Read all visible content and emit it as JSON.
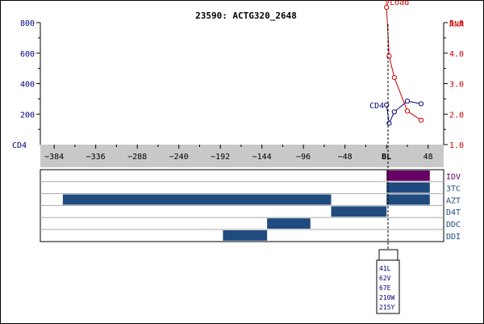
{
  "chart_data": [
    {
      "type": "line",
      "title": "23590: ACTG320_2648",
      "xlabel": "",
      "x_ticks": [
        -384,
        -336,
        -288,
        -240,
        -192,
        -144,
        -96,
        -48,
        0,
        48
      ],
      "x_tick_labels": [
        "-384",
        "-336",
        "-288",
        "-240",
        "-192",
        "-144",
        "-96",
        "-48",
        "BL",
        "48"
      ],
      "xlim": [
        -400,
        66
      ],
      "y_left": {
        "label": "CD4",
        "ticks": [
          200,
          400,
          600,
          800
        ],
        "tick_labels": [
          "200",
          "400",
          "600",
          "800"
        ],
        "ylim": [
          0,
          800
        ]
      },
      "y_right": {
        "label": "RNA",
        "ticks": [
          1.0,
          2.0,
          3.0,
          4.0,
          5.0
        ],
        "tick_labels": [
          "1.0",
          "2.0",
          "3.0",
          "4.0",
          "5.0"
        ],
        "ylim": [
          1.0,
          5.0
        ]
      },
      "series": [
        {
          "name": "CD4",
          "axis": "left",
          "color": "#00007f",
          "x": [
            0,
            3,
            9,
            24,
            40
          ],
          "y": [
            260,
            140,
            215,
            285,
            268
          ]
        },
        {
          "name": "VLoad",
          "axis": "right",
          "color": "#cc0000",
          "x": [
            0,
            3,
            9,
            24,
            40
          ],
          "y": [
            5.5,
            3.9,
            3.2,
            2.1,
            1.8
          ]
        }
      ],
      "cd4_corner_label": "CD4"
    },
    {
      "type": "table",
      "title": "",
      "rows": [
        {
          "label": "IDV",
          "label_color": "#660066",
          "bar_color": "#660066",
          "segments": [
            [
              0,
              50
            ]
          ]
        },
        {
          "label": "3TC",
          "label_color": "#1f4b7f",
          "bar_color": "#1f4b7f",
          "segments": [
            [
              0,
              50
            ]
          ]
        },
        {
          "label": "AZT",
          "label_color": "#1f4b7f",
          "bar_color": "#1f4b7f",
          "segments": [
            [
              -374,
              -64
            ],
            [
              0,
              50
            ]
          ]
        },
        {
          "label": "D4T",
          "label_color": "#1f4b7f",
          "bar_color": "#1f4b7f",
          "segments": [
            [
              -64,
              0
            ]
          ]
        },
        {
          "label": "DDC",
          "label_color": "#1f4b7f",
          "bar_color": "#1f4b7f",
          "segments": [
            [
              -138,
              -88
            ]
          ]
        },
        {
          "label": "DDI",
          "label_color": "#1f4b7f",
          "bar_color": "#1f4b7f",
          "segments": [
            [
              -189,
              -138
            ]
          ]
        }
      ],
      "mutations": [
        "41L",
        "62V",
        "67E",
        "210W",
        "215Y"
      ]
    }
  ]
}
